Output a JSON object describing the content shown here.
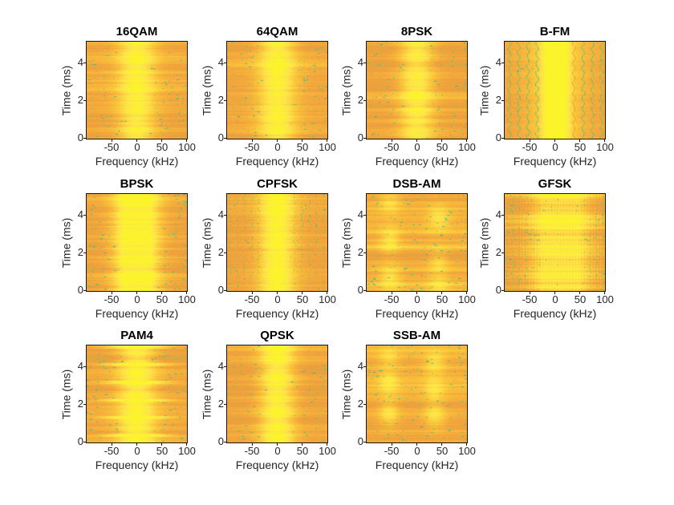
{
  "figure": {
    "background": "#ffffff",
    "grid": {
      "rows": 3,
      "cols": 4,
      "subplot_count": 11
    }
  },
  "style": {
    "tick_color": "#262626",
    "label_color": "#262626",
    "title_color": "#000000",
    "axes_border_color": "#151515"
  },
  "colormap": {
    "name": "parula-upper-range",
    "stops": [
      [
        0.32,
        "#1b9489"
      ],
      [
        0.42,
        "#2fb7a3"
      ],
      [
        0.52,
        "#4ec27c"
      ],
      [
        0.62,
        "#9cc45e"
      ],
      [
        0.7,
        "#cfae45"
      ],
      [
        0.78,
        "#eda03c"
      ],
      [
        0.8,
        "#f2a43c"
      ],
      [
        0.88,
        "#fbc83a"
      ],
      [
        0.94,
        "#fde44c"
      ],
      [
        1.0,
        "#fcf42b"
      ]
    ]
  },
  "chart_data": [
    {
      "type": "heatmap",
      "title": "16QAM",
      "xlabel": "Frequency (kHz)",
      "ylabel": "Time (ms)",
      "x_range": [
        -100,
        100
      ],
      "y_range": [
        0,
        5.12
      ],
      "x_ticks": [
        -50,
        0,
        50,
        100
      ],
      "y_ticks": [
        0,
        2,
        4
      ],
      "x_tick_labels": [
        "-50",
        "0",
        "50",
        "100"
      ],
      "y_tick_labels": [
        "0",
        "2",
        "4"
      ],
      "pattern": {
        "kind": "band",
        "base": 0.8,
        "rowVar": 1.0,
        "band": {
          "center": 0.5,
          "width": 0.135,
          "gain": 0.17
        },
        "speckles": 150
      }
    },
    {
      "type": "heatmap",
      "title": "64QAM",
      "xlabel": "Frequency (kHz)",
      "ylabel": "Time (ms)",
      "x_range": [
        -100,
        100
      ],
      "y_range": [
        0,
        5.12
      ],
      "x_ticks": [
        -50,
        0,
        50,
        100
      ],
      "y_ticks": [
        0,
        2,
        4
      ],
      "x_tick_labels": [
        "-50",
        "0",
        "50",
        "100"
      ],
      "y_tick_labels": [
        "0",
        "2",
        "4"
      ],
      "pattern": {
        "kind": "band",
        "base": 0.8,
        "rowVar": 1.0,
        "band": {
          "center": 0.5,
          "width": 0.135,
          "gain": 0.18,
          "segmented": true
        },
        "speckles": 170
      }
    },
    {
      "type": "heatmap",
      "title": "8PSK",
      "xlabel": "Frequency (kHz)",
      "ylabel": "Time (ms)",
      "x_range": [
        -100,
        100
      ],
      "y_range": [
        0,
        5.12
      ],
      "x_ticks": [
        -50,
        0,
        50,
        100
      ],
      "y_ticks": [
        0,
        2,
        4
      ],
      "x_tick_labels": [
        "-50",
        "0",
        "50",
        "100"
      ],
      "y_tick_labels": [
        "0",
        "2",
        "4"
      ],
      "pattern": {
        "kind": "band",
        "base": 0.8,
        "rowVar": 0.9,
        "band": {
          "center": 0.5,
          "width": 0.125,
          "gain": 0.17,
          "segmented": true
        },
        "speckles": 150
      }
    },
    {
      "type": "heatmap",
      "title": "B-FM",
      "xlabel": "Frequency (kHz)",
      "ylabel": "Time (ms)",
      "x_range": [
        -100,
        100
      ],
      "y_range": [
        0,
        5.12
      ],
      "x_ticks": [
        -50,
        0,
        50,
        100
      ],
      "y_ticks": [
        0,
        2,
        4
      ],
      "x_tick_labels": [
        "-50",
        "0",
        "50",
        "100"
      ],
      "y_tick_labels": [
        "0",
        "2",
        "4"
      ],
      "pattern": {
        "kind": "band-stripes",
        "base": 0.8,
        "rowVar": 0.35,
        "band": {
          "center": 0.51,
          "width": 0.085,
          "gain": 0.22,
          "halo": 0.1
        },
        "stripes": {
          "start": 0.045,
          "spacing": 0.0925,
          "count": 11
        },
        "speckles": 25
      }
    },
    {
      "type": "heatmap",
      "title": "BPSK",
      "xlabel": "Frequency (kHz)",
      "ylabel": "Time (ms)",
      "x_range": [
        -100,
        100
      ],
      "y_range": [
        0,
        5.12
      ],
      "x_ticks": [
        -50,
        0,
        50,
        100
      ],
      "y_ticks": [
        0,
        2,
        4
      ],
      "x_tick_labels": [
        "-50",
        "0",
        "50",
        "100"
      ],
      "y_tick_labels": [
        "0",
        "2",
        "4"
      ],
      "pattern": {
        "kind": "band",
        "base": 0.79,
        "rowVar": 1.1,
        "band": {
          "center": 0.5,
          "width": 0.15,
          "gain": 0.2,
          "flat": true
        },
        "speckles": 210
      }
    },
    {
      "type": "heatmap",
      "title": "CPFSK",
      "xlabel": "Frequency (kHz)",
      "ylabel": "Time (ms)",
      "x_range": [
        -100,
        100
      ],
      "y_range": [
        0,
        5.12
      ],
      "x_ticks": [
        -50,
        0,
        50,
        100
      ],
      "y_ticks": [
        0,
        2,
        4
      ],
      "x_tick_labels": [
        "-50",
        "0",
        "50",
        "100"
      ],
      "y_tick_labels": [
        "0",
        "2",
        "4"
      ],
      "pattern": {
        "kind": "band-dots",
        "base": 0.8,
        "rowVar": 0.9,
        "band": {
          "center": 0.5,
          "width": 0.13,
          "gain": 0.2
        },
        "dots": {
          "spacing": 9,
          "offset": 3
        },
        "speckles": 60
      }
    },
    {
      "type": "heatmap",
      "title": "DSB-AM",
      "xlabel": "Frequency (kHz)",
      "ylabel": "Time (ms)",
      "x_range": [
        -100,
        100
      ],
      "y_range": [
        0,
        5.12
      ],
      "x_ticks": [
        -50,
        0,
        50,
        100
      ],
      "y_ticks": [
        0,
        2,
        4
      ],
      "x_tick_labels": [
        "-50",
        "0",
        "50",
        "100"
      ],
      "y_tick_labels": [
        "0",
        "2",
        "4"
      ],
      "pattern": {
        "kind": "blobs",
        "base": 0.835,
        "rowVar": 1.2,
        "blobs": [
          {
            "x": 0.23,
            "y": 0.13,
            "sx": 0.075,
            "sy": 0.1,
            "g": 0.11
          },
          {
            "x": 0.23,
            "y": 0.52,
            "sx": 0.07,
            "sy": 0.1,
            "g": 0.12
          },
          {
            "x": 0.23,
            "y": 0.92,
            "sx": 0.08,
            "sy": 0.09,
            "g": 0.1
          },
          {
            "x": 0.72,
            "y": 0.05,
            "sx": 0.08,
            "sy": 0.08,
            "g": 0.09
          },
          {
            "x": 0.72,
            "y": 0.3,
            "sx": 0.07,
            "sy": 0.09,
            "g": 0.1
          },
          {
            "x": 0.72,
            "y": 0.75,
            "sx": 0.08,
            "sy": 0.1,
            "g": 0.11
          }
        ],
        "speckles": 160
      }
    },
    {
      "type": "heatmap",
      "title": "GFSK",
      "xlabel": "Frequency (kHz)",
      "ylabel": "Time (ms)",
      "x_range": [
        -100,
        100
      ],
      "y_range": [
        0,
        5.12
      ],
      "x_ticks": [
        -50,
        0,
        50,
        100
      ],
      "y_ticks": [
        0,
        2,
        4
      ],
      "x_tick_labels": [
        "-50",
        "0",
        "50",
        "100"
      ],
      "y_tick_labels": [
        "0",
        "2",
        "4"
      ],
      "pattern": {
        "kind": "band-dots",
        "base": 0.8,
        "rowVar": 1.5,
        "band": {
          "center": 0.56,
          "width": 0.2,
          "gain": 0.16,
          "flat": true,
          "comb": true
        },
        "dots": {
          "spacing": 8,
          "offset": 2
        },
        "speckles": 140
      }
    },
    {
      "type": "heatmap",
      "title": "PAM4",
      "xlabel": "Frequency (kHz)",
      "ylabel": "Time (ms)",
      "x_range": [
        -100,
        100
      ],
      "y_range": [
        0,
        5.12
      ],
      "x_ticks": [
        -50,
        0,
        50,
        100
      ],
      "y_ticks": [
        0,
        2,
        4
      ],
      "x_tick_labels": [
        "-50",
        "0",
        "50",
        "100"
      ],
      "y_tick_labels": [
        "0",
        "2",
        "4"
      ],
      "pattern": {
        "kind": "band",
        "base": 0.8,
        "rowVar": 1.0,
        "band": {
          "center": 0.5,
          "width": 0.14,
          "gain": 0.18,
          "pulse": true
        },
        "speckles": 150
      }
    },
    {
      "type": "heatmap",
      "title": "QPSK",
      "xlabel": "Frequency (kHz)",
      "ylabel": "Time (ms)",
      "x_range": [
        -100,
        100
      ],
      "y_range": [
        0,
        5.12
      ],
      "x_ticks": [
        -50,
        0,
        50,
        100
      ],
      "y_ticks": [
        0,
        2,
        4
      ],
      "x_tick_labels": [
        "-50",
        "0",
        "50",
        "100"
      ],
      "y_tick_labels": [
        "0",
        "2",
        "4"
      ],
      "pattern": {
        "kind": "band",
        "base": 0.8,
        "rowVar": 0.9,
        "band": {
          "center": 0.5,
          "width": 0.125,
          "gain": 0.19,
          "segmented": true
        },
        "speckles": 140
      }
    },
    {
      "type": "heatmap",
      "title": "SSB-AM",
      "xlabel": "Frequency (kHz)",
      "ylabel": "Time (ms)",
      "x_range": [
        -100,
        100
      ],
      "y_range": [
        0,
        5.12
      ],
      "x_ticks": [
        -50,
        0,
        50,
        100
      ],
      "y_ticks": [
        0,
        2,
        4
      ],
      "x_tick_labels": [
        "-50",
        "0",
        "50",
        "100"
      ],
      "y_tick_labels": [
        "0",
        "2",
        "4"
      ],
      "pattern": {
        "kind": "blobs",
        "base": 0.815,
        "rowVar": 1.2,
        "blobs": [
          {
            "x": 0.22,
            "y": 0.3,
            "sx": 0.07,
            "sy": 0.1,
            "g": 0.12
          },
          {
            "x": 0.22,
            "y": 0.62,
            "sx": 0.07,
            "sy": 0.09,
            "g": 0.11
          },
          {
            "x": 0.22,
            "y": 0.88,
            "sx": 0.07,
            "sy": 0.07,
            "g": 0.09
          },
          {
            "x": 0.68,
            "y": 0.28,
            "sx": 0.075,
            "sy": 0.1,
            "g": 0.12
          },
          {
            "x": 0.68,
            "y": 0.55,
            "sx": 0.07,
            "sy": 0.08,
            "g": 0.1
          },
          {
            "x": 0.68,
            "y": 0.82,
            "sx": 0.075,
            "sy": 0.09,
            "g": 0.11
          }
        ],
        "speckles": 170
      }
    }
  ]
}
